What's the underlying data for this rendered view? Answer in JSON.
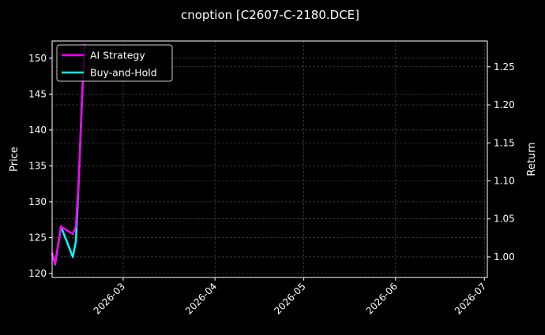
{
  "chart_data": {
    "type": "line",
    "title": "cnoption [C2607-C-2180.DCE]",
    "ylabel": "Price",
    "y2label": "Return",
    "xlim": [
      "2026-02-05",
      "2026-07-02"
    ],
    "ylim": [
      119.45,
      152.4
    ],
    "y2lim": [
      0.973,
      1.284
    ],
    "xticks": [
      "2026-03",
      "2026-04",
      "2026-05",
      "2026-06",
      "2026-07"
    ],
    "xtick_dates": [
      "2026-03-01",
      "2026-04-01",
      "2026-05-01",
      "2026-06-01",
      "2026-07-01"
    ],
    "yticks": [
      120,
      125,
      130,
      135,
      140,
      145,
      150
    ],
    "y2ticks": [
      "1.00",
      "1.05",
      "1.10",
      "1.15",
      "1.20",
      "1.25"
    ],
    "grid": true,
    "legend_position": "top-left",
    "x": [
      "2026-02-05",
      "2026-02-06",
      "2026-02-08",
      "2026-02-12",
      "2026-02-13",
      "2026-02-14",
      "2026-02-15",
      "2026-02-16"
    ],
    "series": [
      {
        "name": "AI Strategy",
        "axis": "right",
        "color": "#ff00ff",
        "values": [
          1.005,
          0.99,
          1.04,
          1.03,
          1.04,
          1.1,
          1.2,
          1.28
        ]
      },
      {
        "name": "Buy-and-Hold",
        "axis": "right",
        "color": "#00ffff",
        "values": [
          1.005,
          0.99,
          1.04,
          1.0,
          1.02,
          1.1,
          1.2,
          1.28
        ]
      }
    ]
  }
}
